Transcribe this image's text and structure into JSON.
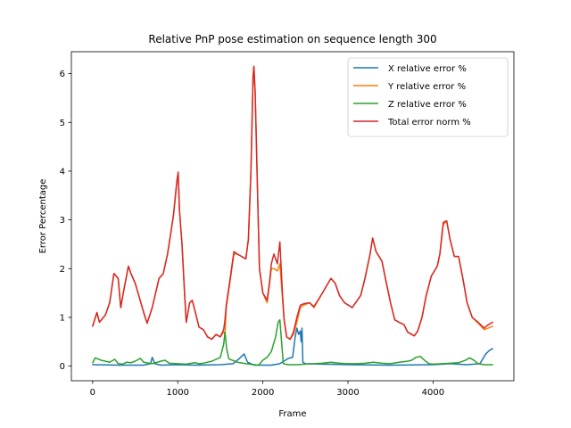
{
  "chart_data": {
    "type": "line",
    "title": "Relative PnP pose estimation on sequence length 300",
    "xlabel": "Frame",
    "ylabel": "Error Percentage",
    "xlim": [
      -250,
      4950
    ],
    "ylim": [
      -0.3,
      6.45
    ],
    "xticks": [
      0,
      1000,
      2000,
      3000,
      4000
    ],
    "yticks": [
      0,
      1,
      2,
      3,
      4,
      5,
      6
    ],
    "grid": false,
    "legend_position": "top-right",
    "series": [
      {
        "name": "X relative error %",
        "color": "#1f77b4",
        "points": [
          [
            0,
            0.03
          ],
          [
            300,
            0.02
          ],
          [
            600,
            0.02
          ],
          [
            680,
            0.05
          ],
          [
            700,
            0.18
          ],
          [
            730,
            0.05
          ],
          [
            800,
            0.02
          ],
          [
            1000,
            0.03
          ],
          [
            1200,
            0.02
          ],
          [
            1500,
            0.03
          ],
          [
            1650,
            0.05
          ],
          [
            1720,
            0.15
          ],
          [
            1780,
            0.25
          ],
          [
            1820,
            0.08
          ],
          [
            1900,
            0.02
          ],
          [
            2100,
            0.02
          ],
          [
            2200,
            0.05
          ],
          [
            2300,
            0.16
          ],
          [
            2350,
            0.18
          ],
          [
            2380,
            0.6
          ],
          [
            2400,
            0.78
          ],
          [
            2420,
            0.65
          ],
          [
            2440,
            0.72
          ],
          [
            2450,
            0.5
          ],
          [
            2460,
            0.78
          ],
          [
            2470,
            0.08
          ],
          [
            2500,
            0.05
          ],
          [
            2700,
            0.04
          ],
          [
            3000,
            0.03
          ],
          [
            3500,
            0.02
          ],
          [
            4000,
            0.03
          ],
          [
            4200,
            0.05
          ],
          [
            4400,
            0.03
          ],
          [
            4550,
            0.05
          ],
          [
            4620,
            0.25
          ],
          [
            4660,
            0.32
          ],
          [
            4700,
            0.36
          ]
        ]
      },
      {
        "name": "Y relative error %",
        "color": "#ff7f0e",
        "points": [
          [
            0,
            0.82
          ],
          [
            50,
            1.1
          ],
          [
            80,
            0.9
          ],
          [
            150,
            1.05
          ],
          [
            200,
            1.3
          ],
          [
            250,
            1.9
          ],
          [
            300,
            1.8
          ],
          [
            330,
            1.2
          ],
          [
            360,
            1.5
          ],
          [
            420,
            2.05
          ],
          [
            450,
            1.9
          ],
          [
            500,
            1.7
          ],
          [
            550,
            1.4
          ],
          [
            600,
            1.1
          ],
          [
            640,
            0.88
          ],
          [
            700,
            1.2
          ],
          [
            780,
            1.8
          ],
          [
            830,
            1.9
          ],
          [
            880,
            2.3
          ],
          [
            920,
            2.75
          ],
          [
            950,
            3.1
          ],
          [
            990,
            3.8
          ],
          [
            1005,
            3.95
          ],
          [
            1020,
            3.2
          ],
          [
            1050,
            2.5
          ],
          [
            1080,
            1.5
          ],
          [
            1100,
            0.9
          ],
          [
            1140,
            1.3
          ],
          [
            1170,
            1.35
          ],
          [
            1200,
            1.15
          ],
          [
            1250,
            0.8
          ],
          [
            1300,
            0.75
          ],
          [
            1350,
            0.6
          ],
          [
            1400,
            0.55
          ],
          [
            1450,
            0.65
          ],
          [
            1500,
            0.6
          ],
          [
            1540,
            0.7
          ],
          [
            1555,
            0.65
          ],
          [
            1570,
            1.2
          ],
          [
            1620,
            1.8
          ],
          [
            1660,
            2.3
          ],
          [
            1700,
            2.3
          ],
          [
            1750,
            2.25
          ],
          [
            1800,
            2.2
          ],
          [
            1830,
            2.6
          ],
          [
            1860,
            4.0
          ],
          [
            1885,
            5.9
          ],
          [
            1895,
            6.15
          ],
          [
            1910,
            5.6
          ],
          [
            1940,
            3.4
          ],
          [
            1960,
            2.0
          ],
          [
            2000,
            1.5
          ],
          [
            2050,
            1.3
          ],
          [
            2080,
            1.7
          ],
          [
            2100,
            2.0
          ],
          [
            2130,
            2.0
          ],
          [
            2170,
            1.95
          ],
          [
            2200,
            2.1
          ],
          [
            2230,
            1.4
          ],
          [
            2250,
            0.95
          ],
          [
            2280,
            0.6
          ],
          [
            2320,
            0.55
          ],
          [
            2360,
            0.65
          ],
          [
            2400,
            0.9
          ],
          [
            2440,
            1.2
          ],
          [
            2480,
            1.25
          ],
          [
            2550,
            1.3
          ],
          [
            2600,
            1.2
          ],
          [
            2700,
            1.5
          ],
          [
            2750,
            1.65
          ],
          [
            2800,
            1.8
          ],
          [
            2850,
            1.7
          ],
          [
            2900,
            1.45
          ],
          [
            2960,
            1.3
          ],
          [
            3050,
            1.2
          ],
          [
            3150,
            1.45
          ],
          [
            3200,
            1.8
          ],
          [
            3260,
            2.3
          ],
          [
            3290,
            2.62
          ],
          [
            3330,
            2.35
          ],
          [
            3400,
            2.15
          ],
          [
            3440,
            1.8
          ],
          [
            3500,
            1.3
          ],
          [
            3550,
            0.95
          ],
          [
            3600,
            0.9
          ],
          [
            3660,
            0.85
          ],
          [
            3700,
            0.7
          ],
          [
            3750,
            0.65
          ],
          [
            3780,
            0.62
          ],
          [
            3820,
            0.72
          ],
          [
            3870,
            1.0
          ],
          [
            3920,
            1.45
          ],
          [
            3980,
            1.85
          ],
          [
            4050,
            2.05
          ],
          [
            4080,
            2.3
          ],
          [
            4120,
            2.9
          ],
          [
            4160,
            2.98
          ],
          [
            4200,
            2.6
          ],
          [
            4250,
            2.25
          ],
          [
            4300,
            2.25
          ],
          [
            4350,
            1.8
          ],
          [
            4400,
            1.3
          ],
          [
            4460,
            1.0
          ],
          [
            4530,
            0.88
          ],
          [
            4600,
            0.75
          ],
          [
            4650,
            0.78
          ],
          [
            4700,
            0.82
          ]
        ]
      },
      {
        "name": "Z relative error %",
        "color": "#2ca02c",
        "points": [
          [
            0,
            0.07
          ],
          [
            30,
            0.17
          ],
          [
            100,
            0.12
          ],
          [
            200,
            0.08
          ],
          [
            260,
            0.14
          ],
          [
            300,
            0.05
          ],
          [
            350,
            0.04
          ],
          [
            400,
            0.08
          ],
          [
            450,
            0.07
          ],
          [
            500,
            0.1
          ],
          [
            560,
            0.16
          ],
          [
            600,
            0.08
          ],
          [
            700,
            0.05
          ],
          [
            800,
            0.1
          ],
          [
            850,
            0.12
          ],
          [
            900,
            0.06
          ],
          [
            1000,
            0.05
          ],
          [
            1100,
            0.04
          ],
          [
            1200,
            0.07
          ],
          [
            1250,
            0.05
          ],
          [
            1300,
            0.06
          ],
          [
            1400,
            0.1
          ],
          [
            1500,
            0.18
          ],
          [
            1540,
            0.45
          ],
          [
            1555,
            0.7
          ],
          [
            1575,
            0.35
          ],
          [
            1600,
            0.15
          ],
          [
            1700,
            0.08
          ],
          [
            1800,
            0.05
          ],
          [
            1900,
            0.03
          ],
          [
            1950,
            0.02
          ],
          [
            2000,
            0.12
          ],
          [
            2050,
            0.18
          ],
          [
            2100,
            0.3
          ],
          [
            2150,
            0.6
          ],
          [
            2180,
            0.9
          ],
          [
            2200,
            0.95
          ],
          [
            2220,
            0.5
          ],
          [
            2240,
            0.05
          ],
          [
            2300,
            0.03
          ],
          [
            2400,
            0.03
          ],
          [
            2500,
            0.04
          ],
          [
            2600,
            0.05
          ],
          [
            2700,
            0.06
          ],
          [
            2800,
            0.08
          ],
          [
            2900,
            0.06
          ],
          [
            3000,
            0.05
          ],
          [
            3100,
            0.05
          ],
          [
            3200,
            0.06
          ],
          [
            3300,
            0.08
          ],
          [
            3400,
            0.06
          ],
          [
            3500,
            0.05
          ],
          [
            3600,
            0.08
          ],
          [
            3700,
            0.1
          ],
          [
            3750,
            0.12
          ],
          [
            3800,
            0.18
          ],
          [
            3850,
            0.2
          ],
          [
            3900,
            0.12
          ],
          [
            3950,
            0.05
          ],
          [
            4000,
            0.04
          ],
          [
            4100,
            0.05
          ],
          [
            4200,
            0.06
          ],
          [
            4300,
            0.07
          ],
          [
            4380,
            0.12
          ],
          [
            4430,
            0.17
          ],
          [
            4480,
            0.12
          ],
          [
            4530,
            0.05
          ],
          [
            4600,
            0.03
          ],
          [
            4700,
            0.03
          ]
        ]
      },
      {
        "name": "Total error norm %",
        "color": "#d62728",
        "points": [
          [
            0,
            0.82
          ],
          [
            50,
            1.1
          ],
          [
            80,
            0.9
          ],
          [
            150,
            1.05
          ],
          [
            200,
            1.3
          ],
          [
            250,
            1.9
          ],
          [
            300,
            1.8
          ],
          [
            330,
            1.2
          ],
          [
            360,
            1.5
          ],
          [
            420,
            2.05
          ],
          [
            450,
            1.9
          ],
          [
            500,
            1.7
          ],
          [
            550,
            1.4
          ],
          [
            600,
            1.1
          ],
          [
            640,
            0.88
          ],
          [
            700,
            1.2
          ],
          [
            780,
            1.8
          ],
          [
            830,
            1.9
          ],
          [
            880,
            2.3
          ],
          [
            920,
            2.75
          ],
          [
            950,
            3.1
          ],
          [
            990,
            3.8
          ],
          [
            1005,
            3.98
          ],
          [
            1020,
            3.2
          ],
          [
            1050,
            2.5
          ],
          [
            1080,
            1.5
          ],
          [
            1100,
            0.9
          ],
          [
            1140,
            1.3
          ],
          [
            1170,
            1.35
          ],
          [
            1200,
            1.15
          ],
          [
            1250,
            0.8
          ],
          [
            1300,
            0.75
          ],
          [
            1350,
            0.6
          ],
          [
            1400,
            0.55
          ],
          [
            1450,
            0.65
          ],
          [
            1500,
            0.6
          ],
          [
            1540,
            0.75
          ],
          [
            1555,
            0.95
          ],
          [
            1570,
            1.25
          ],
          [
            1620,
            1.85
          ],
          [
            1660,
            2.35
          ],
          [
            1700,
            2.3
          ],
          [
            1750,
            2.25
          ],
          [
            1800,
            2.2
          ],
          [
            1830,
            2.6
          ],
          [
            1860,
            4.0
          ],
          [
            1885,
            5.95
          ],
          [
            1895,
            6.15
          ],
          [
            1910,
            5.6
          ],
          [
            1940,
            3.4
          ],
          [
            1960,
            2.0
          ],
          [
            2000,
            1.5
          ],
          [
            2050,
            1.35
          ],
          [
            2080,
            1.75
          ],
          [
            2100,
            2.1
          ],
          [
            2130,
            2.3
          ],
          [
            2170,
            2.1
          ],
          [
            2200,
            2.55
          ],
          [
            2230,
            1.5
          ],
          [
            2250,
            0.95
          ],
          [
            2280,
            0.6
          ],
          [
            2320,
            0.55
          ],
          [
            2360,
            0.7
          ],
          [
            2400,
            1.0
          ],
          [
            2440,
            1.25
          ],
          [
            2480,
            1.28
          ],
          [
            2550,
            1.3
          ],
          [
            2600,
            1.22
          ],
          [
            2700,
            1.5
          ],
          [
            2750,
            1.65
          ],
          [
            2800,
            1.8
          ],
          [
            2850,
            1.7
          ],
          [
            2900,
            1.45
          ],
          [
            2960,
            1.3
          ],
          [
            3050,
            1.2
          ],
          [
            3150,
            1.45
          ],
          [
            3200,
            1.8
          ],
          [
            3260,
            2.3
          ],
          [
            3290,
            2.63
          ],
          [
            3330,
            2.35
          ],
          [
            3400,
            2.15
          ],
          [
            3440,
            1.8
          ],
          [
            3500,
            1.3
          ],
          [
            3550,
            0.95
          ],
          [
            3600,
            0.9
          ],
          [
            3660,
            0.85
          ],
          [
            3700,
            0.7
          ],
          [
            3750,
            0.65
          ],
          [
            3780,
            0.62
          ],
          [
            3820,
            0.72
          ],
          [
            3870,
            1.0
          ],
          [
            3920,
            1.45
          ],
          [
            3980,
            1.85
          ],
          [
            4050,
            2.05
          ],
          [
            4080,
            2.3
          ],
          [
            4120,
            2.95
          ],
          [
            4160,
            2.98
          ],
          [
            4200,
            2.6
          ],
          [
            4250,
            2.25
          ],
          [
            4300,
            2.25
          ],
          [
            4350,
            1.8
          ],
          [
            4400,
            1.3
          ],
          [
            4460,
            1.0
          ],
          [
            4530,
            0.9
          ],
          [
            4600,
            0.78
          ],
          [
            4650,
            0.85
          ],
          [
            4700,
            0.9
          ]
        ]
      }
    ]
  }
}
